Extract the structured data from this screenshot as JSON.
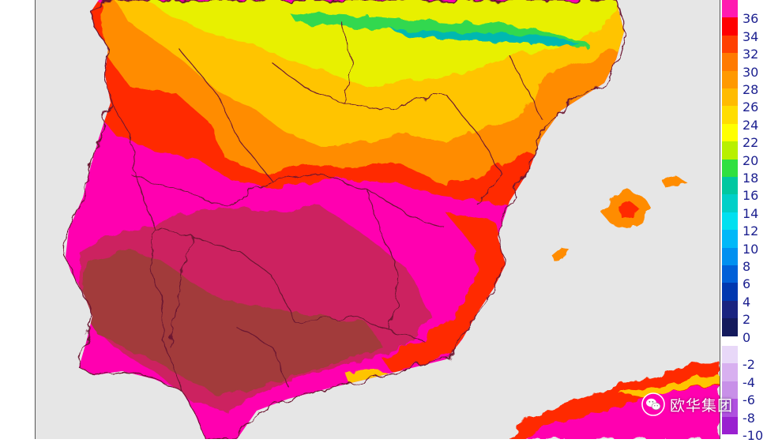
{
  "map": {
    "colors": {
      "sea": "#e6e6e6",
      "border": "#6a1630",
      "band_peak": "#a23b3b",
      "band_38": "#cc2060",
      "band_36": "#ff00b0",
      "band_34": "#ff2a00",
      "band_30": "#ff8c00",
      "band_26": "#ffc400",
      "band_22": "#e8f000",
      "band_18": "#30d850",
      "band_14": "#00b8b0"
    }
  },
  "legend": {
    "positive": [
      {
        "label": "36",
        "color": "#ff1ab0"
      },
      {
        "label": "34",
        "color": "#ff0000"
      },
      {
        "label": "32",
        "color": "#ff4000"
      },
      {
        "label": "30",
        "color": "#ff7a00"
      },
      {
        "label": "28",
        "color": "#ff9900"
      },
      {
        "label": "26",
        "color": "#ffbb00"
      },
      {
        "label": "24",
        "color": "#ffdd00"
      },
      {
        "label": "22",
        "color": "#ffff00"
      },
      {
        "label": "20",
        "color": "#b8f000"
      },
      {
        "label": "18",
        "color": "#30e040"
      },
      {
        "label": "16",
        "color": "#00c8a0"
      },
      {
        "label": "14",
        "color": "#00d0c8"
      },
      {
        "label": "12",
        "color": "#00e0f0"
      },
      {
        "label": "10",
        "color": "#00b8f8"
      },
      {
        "label": "8",
        "color": "#0090f0"
      },
      {
        "label": "6",
        "color": "#0060d8"
      },
      {
        "label": "4",
        "color": "#0038b0"
      },
      {
        "label": "2",
        "color": "#1a2480"
      },
      {
        "label": "0",
        "color": "#141a5c"
      }
    ],
    "negative": [
      {
        "label": "-2",
        "color": "#e8d8f8"
      },
      {
        "label": "-4",
        "color": "#d8b0f0"
      },
      {
        "label": "-6",
        "color": "#c890e8"
      },
      {
        "label": "-8",
        "color": "#b050e0"
      },
      {
        "label": "-10",
        "color": "#9a20d0"
      }
    ]
  },
  "watermark": {
    "text": "欧华集团",
    "icon": "wechat-icon"
  }
}
